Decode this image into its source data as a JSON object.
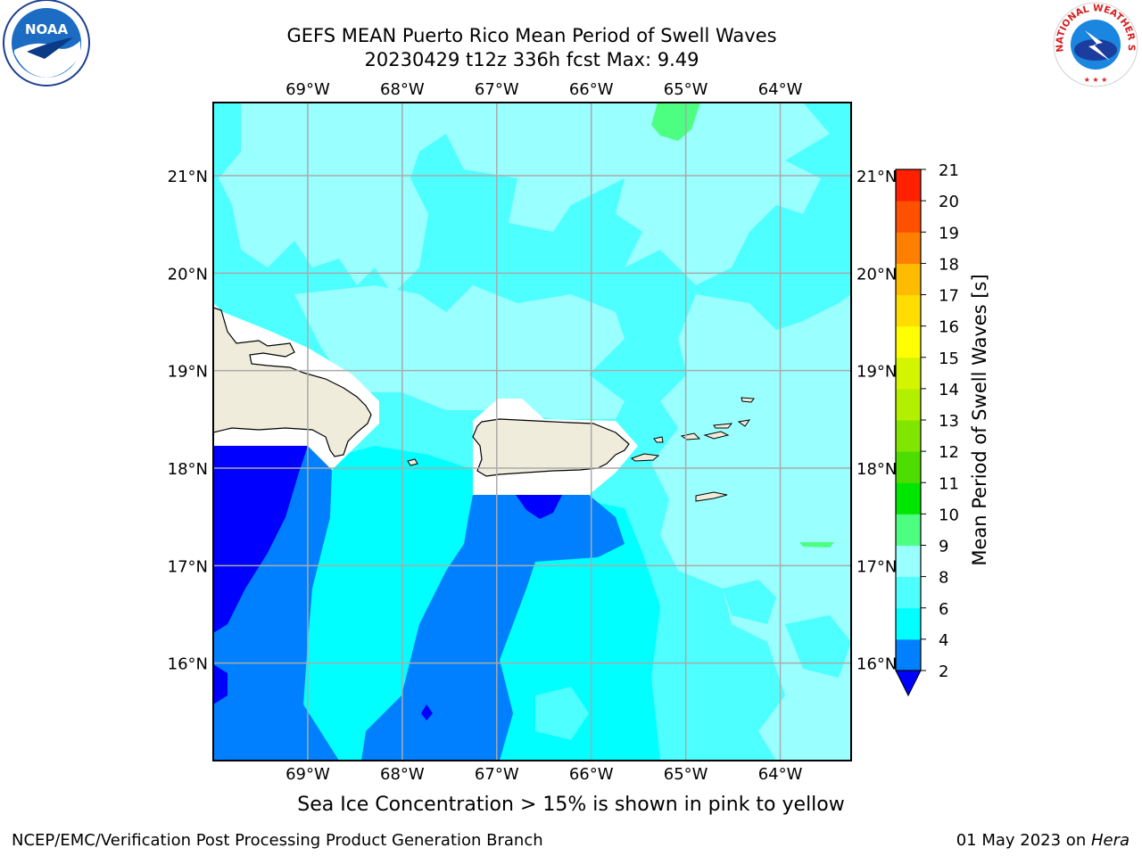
{
  "title": {
    "line1": "GEFS MEAN Puerto Rico Mean Period of Swell Waves",
    "line2": "20230429 t12z 336h fcst   Max: 9.49"
  },
  "map": {
    "lon_labels": [
      "69°W",
      "68°W",
      "67°W",
      "66°W",
      "65°W",
      "64°W"
    ],
    "lat_labels": [
      "21°N",
      "20°N",
      "19°N",
      "18°N",
      "17°N",
      "16°N"
    ],
    "lon_range": [
      -70,
      -63.25
    ],
    "lat_range": [
      15,
      21.75
    ],
    "grid": true
  },
  "colorbar": {
    "label": "Mean Period of Swell Waves [s]",
    "ticks": [
      "2",
      "4",
      "6",
      "8",
      "9",
      "10",
      "11",
      "12",
      "13",
      "14",
      "15",
      "16",
      "17",
      "18",
      "19",
      "20",
      "21"
    ],
    "levels": [
      2,
      4,
      6,
      8,
      9,
      10,
      11,
      12,
      13,
      14,
      15,
      16,
      17,
      18,
      19,
      20,
      21
    ],
    "colors": [
      "#0080ff",
      "#00ffff",
      "#4dffff",
      "#99ffff",
      "#4dff80",
      "#00e600",
      "#4ddd00",
      "#80e600",
      "#b3f000",
      "#d4f500",
      "#ffff00",
      "#ffdd00",
      "#ffbb00",
      "#ff8000",
      "#ff5000",
      "#ff2000"
    ],
    "under_color": "#0000ff"
  },
  "chart_data": {
    "type": "heatmap",
    "variable": "Mean Period of Swell Waves [s]",
    "max": 9.49,
    "regions": [
      {
        "area": "north of 19°N",
        "period_s": "6-9"
      },
      {
        "area": "southwest of Puerto Rico",
        "period_s": "2-4"
      },
      {
        "area": "far southwest corner",
        "period_s": "<2"
      },
      {
        "area": "east and southeast",
        "period_s": "6-9"
      },
      {
        "area": "small patches near 65°W, 21.6°N and 63.5°W, 17.3°N",
        "period_s": "9-10"
      }
    ]
  },
  "note": "Sea Ice Concentration > 15% is shown in pink to yellow",
  "footer": {
    "left": "NCEP/EMC/Verification Post Processing Product Generation Branch",
    "right_date": "01 May 2023 on ",
    "right_machine": "Hera"
  },
  "logos": {
    "left": "NOAA",
    "right": "NATIONAL WEATHER SERVICE"
  },
  "icons": {
    "left_logo": "noaa-logo-icon",
    "right_logo": "nws-logo-icon"
  }
}
